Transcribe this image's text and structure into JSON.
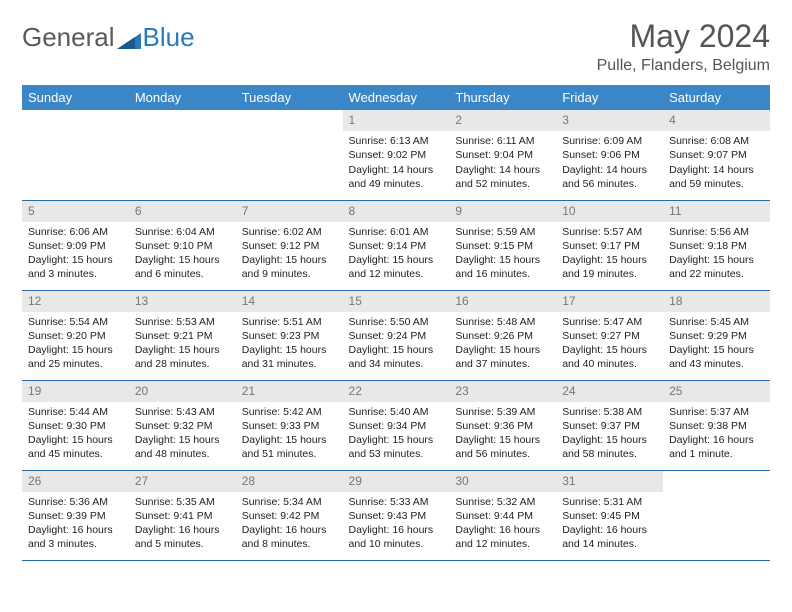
{
  "brand": {
    "part1": "General",
    "part2": "Blue"
  },
  "title": "May 2024",
  "location": "Pulle, Flanders, Belgium",
  "colors": {
    "header_bg": "#3b86c6",
    "header_text": "#ffffff",
    "daynum_bg": "#e8e8e8",
    "daynum_text": "#777777",
    "border": "#2a6aa8",
    "brand_gray": "#5a5a5a",
    "brand_blue": "#2a7ab8"
  },
  "fonts": {
    "title_size": 32,
    "location_size": 16,
    "dayhead_size": 13,
    "body_size": 10.5
  },
  "weekdays": [
    "Sunday",
    "Monday",
    "Tuesday",
    "Wednesday",
    "Thursday",
    "Friday",
    "Saturday"
  ],
  "lead_blanks": 3,
  "days": [
    {
      "n": 1,
      "sr": "6:13 AM",
      "ss": "9:02 PM",
      "dl": "14 hours and 49 minutes."
    },
    {
      "n": 2,
      "sr": "6:11 AM",
      "ss": "9:04 PM",
      "dl": "14 hours and 52 minutes."
    },
    {
      "n": 3,
      "sr": "6:09 AM",
      "ss": "9:06 PM",
      "dl": "14 hours and 56 minutes."
    },
    {
      "n": 4,
      "sr": "6:08 AM",
      "ss": "9:07 PM",
      "dl": "14 hours and 59 minutes."
    },
    {
      "n": 5,
      "sr": "6:06 AM",
      "ss": "9:09 PM",
      "dl": "15 hours and 3 minutes."
    },
    {
      "n": 6,
      "sr": "6:04 AM",
      "ss": "9:10 PM",
      "dl": "15 hours and 6 minutes."
    },
    {
      "n": 7,
      "sr": "6:02 AM",
      "ss": "9:12 PM",
      "dl": "15 hours and 9 minutes."
    },
    {
      "n": 8,
      "sr": "6:01 AM",
      "ss": "9:14 PM",
      "dl": "15 hours and 12 minutes."
    },
    {
      "n": 9,
      "sr": "5:59 AM",
      "ss": "9:15 PM",
      "dl": "15 hours and 16 minutes."
    },
    {
      "n": 10,
      "sr": "5:57 AM",
      "ss": "9:17 PM",
      "dl": "15 hours and 19 minutes."
    },
    {
      "n": 11,
      "sr": "5:56 AM",
      "ss": "9:18 PM",
      "dl": "15 hours and 22 minutes."
    },
    {
      "n": 12,
      "sr": "5:54 AM",
      "ss": "9:20 PM",
      "dl": "15 hours and 25 minutes."
    },
    {
      "n": 13,
      "sr": "5:53 AM",
      "ss": "9:21 PM",
      "dl": "15 hours and 28 minutes."
    },
    {
      "n": 14,
      "sr": "5:51 AM",
      "ss": "9:23 PM",
      "dl": "15 hours and 31 minutes."
    },
    {
      "n": 15,
      "sr": "5:50 AM",
      "ss": "9:24 PM",
      "dl": "15 hours and 34 minutes."
    },
    {
      "n": 16,
      "sr": "5:48 AM",
      "ss": "9:26 PM",
      "dl": "15 hours and 37 minutes."
    },
    {
      "n": 17,
      "sr": "5:47 AM",
      "ss": "9:27 PM",
      "dl": "15 hours and 40 minutes."
    },
    {
      "n": 18,
      "sr": "5:45 AM",
      "ss": "9:29 PM",
      "dl": "15 hours and 43 minutes."
    },
    {
      "n": 19,
      "sr": "5:44 AM",
      "ss": "9:30 PM",
      "dl": "15 hours and 45 minutes."
    },
    {
      "n": 20,
      "sr": "5:43 AM",
      "ss": "9:32 PM",
      "dl": "15 hours and 48 minutes."
    },
    {
      "n": 21,
      "sr": "5:42 AM",
      "ss": "9:33 PM",
      "dl": "15 hours and 51 minutes."
    },
    {
      "n": 22,
      "sr": "5:40 AM",
      "ss": "9:34 PM",
      "dl": "15 hours and 53 minutes."
    },
    {
      "n": 23,
      "sr": "5:39 AM",
      "ss": "9:36 PM",
      "dl": "15 hours and 56 minutes."
    },
    {
      "n": 24,
      "sr": "5:38 AM",
      "ss": "9:37 PM",
      "dl": "15 hours and 58 minutes."
    },
    {
      "n": 25,
      "sr": "5:37 AM",
      "ss": "9:38 PM",
      "dl": "16 hours and 1 minute."
    },
    {
      "n": 26,
      "sr": "5:36 AM",
      "ss": "9:39 PM",
      "dl": "16 hours and 3 minutes."
    },
    {
      "n": 27,
      "sr": "5:35 AM",
      "ss": "9:41 PM",
      "dl": "16 hours and 5 minutes."
    },
    {
      "n": 28,
      "sr": "5:34 AM",
      "ss": "9:42 PM",
      "dl": "16 hours and 8 minutes."
    },
    {
      "n": 29,
      "sr": "5:33 AM",
      "ss": "9:43 PM",
      "dl": "16 hours and 10 minutes."
    },
    {
      "n": 30,
      "sr": "5:32 AM",
      "ss": "9:44 PM",
      "dl": "16 hours and 12 minutes."
    },
    {
      "n": 31,
      "sr": "5:31 AM",
      "ss": "9:45 PM",
      "dl": "16 hours and 14 minutes."
    }
  ]
}
